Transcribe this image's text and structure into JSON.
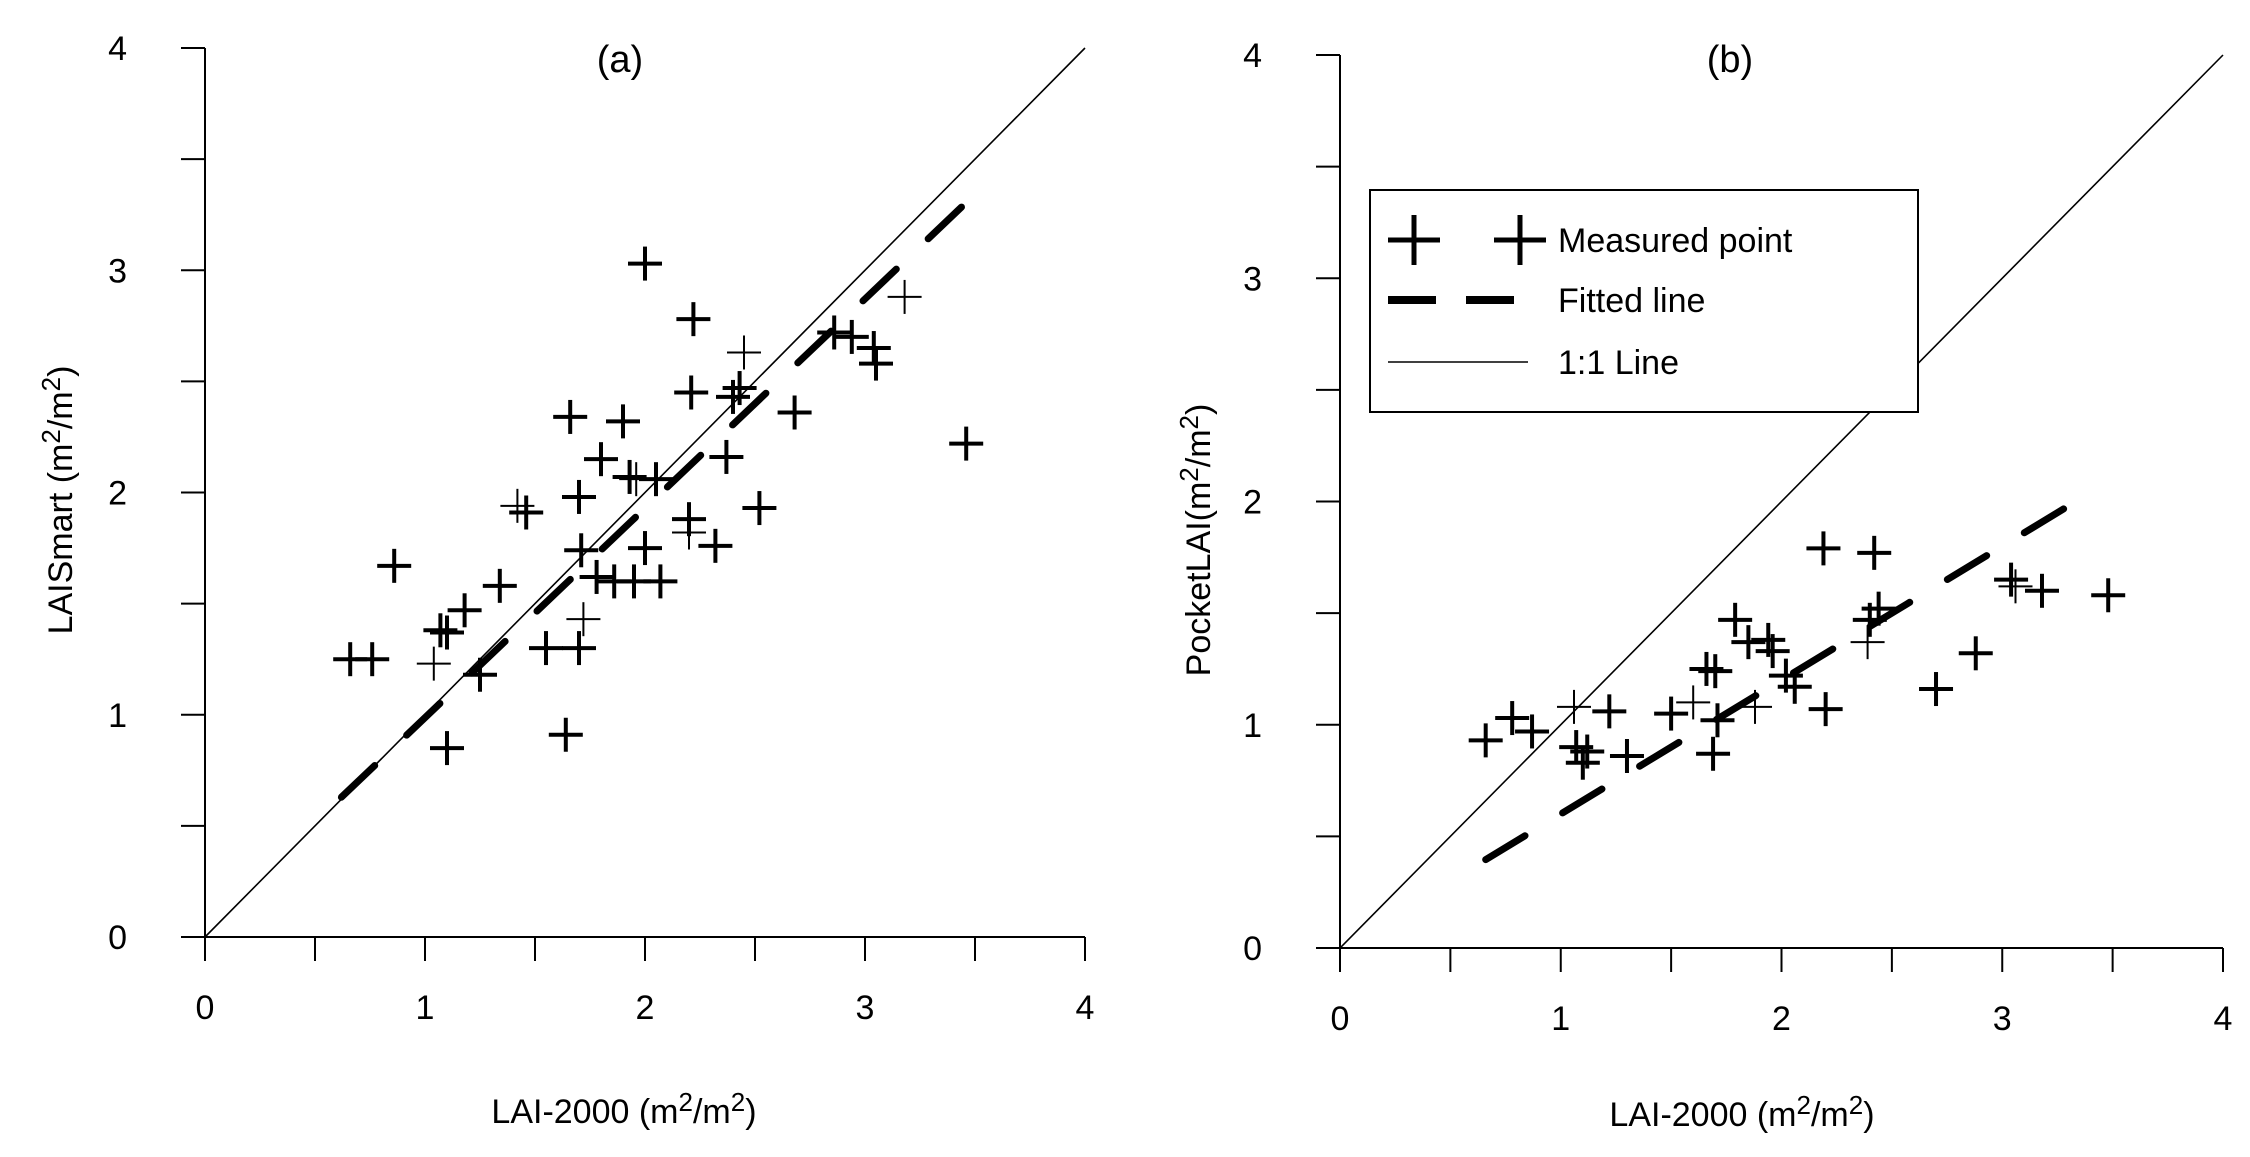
{
  "chart_data": [
    {
      "type": "scatter",
      "title": "(a)",
      "xlabel": "LAI-2000 (m",
      "xlabel_sup": "2",
      "xlabel_mid": "/m",
      "xlabel_sup2": "2",
      "xlabel_end": ")",
      "ylabel": "LAISmart (m",
      "ylabel_sup": "2",
      "ylabel_mid": "/m",
      "ylabel_sup2": "2",
      "ylabel_end": ")",
      "xlim": [
        0,
        4
      ],
      "ylim": [
        0,
        4
      ],
      "xticks": [
        0,
        1,
        2,
        3,
        4
      ],
      "yticks": [
        0,
        1,
        2,
        3,
        4
      ],
      "minor_ticks": [
        0.5,
        1.5,
        2.5,
        3.5
      ],
      "one_to_one": [
        [
          0,
          0
        ],
        [
          4,
          4
        ]
      ],
      "fitted_line": {
        "x0": 0.62,
        "x1": 3.46,
        "slope": 0.942,
        "intercept": 0.045
      },
      "series": [
        {
          "name": "Measured point",
          "points": [
            [
              0.66,
              1.25
            ],
            [
              0.76,
              1.25
            ],
            [
              0.86,
              1.67
            ],
            [
              1.04,
              1.23
            ],
            [
              1.07,
              1.38
            ],
            [
              1.1,
              1.37
            ],
            [
              1.1,
              0.85
            ],
            [
              1.18,
              1.47
            ],
            [
              1.25,
              1.18
            ],
            [
              1.34,
              1.58
            ],
            [
              1.42,
              1.94
            ],
            [
              1.46,
              1.91
            ],
            [
              1.55,
              1.3
            ],
            [
              1.64,
              0.91
            ],
            [
              1.66,
              2.34
            ],
            [
              1.7,
              1.98
            ],
            [
              1.71,
              1.74
            ],
            [
              1.72,
              1.43
            ],
            [
              1.7,
              1.3
            ],
            [
              1.78,
              1.62
            ],
            [
              1.8,
              2.15
            ],
            [
              1.86,
              1.6
            ],
            [
              1.9,
              2.32
            ],
            [
              1.93,
              2.07
            ],
            [
              1.96,
              2.06
            ],
            [
              1.95,
              1.6
            ],
            [
              2.0,
              1.75
            ],
            [
              2.0,
              3.03
            ],
            [
              2.05,
              2.06
            ],
            [
              2.07,
              1.6
            ],
            [
              2.2,
              1.88
            ],
            [
              2.2,
              1.82
            ],
            [
              2.21,
              2.45
            ],
            [
              2.22,
              2.78
            ],
            [
              2.32,
              1.76
            ],
            [
              2.37,
              2.16
            ],
            [
              2.4,
              2.43
            ],
            [
              2.43,
              2.47
            ],
            [
              2.45,
              2.63
            ],
            [
              2.52,
              1.93
            ],
            [
              2.68,
              2.36
            ],
            [
              2.86,
              2.72
            ],
            [
              2.94,
              2.7
            ],
            [
              3.04,
              2.65
            ],
            [
              3.05,
              2.58
            ],
            [
              3.18,
              2.88
            ],
            [
              3.46,
              2.22
            ]
          ]
        }
      ]
    },
    {
      "type": "scatter",
      "title": "(b)",
      "xlabel": "LAI-2000 (m",
      "xlabel_sup": "2",
      "xlabel_mid": "/m",
      "xlabel_sup2": "2",
      "xlabel_end": ")",
      "ylabel": "PocketLAI(m",
      "ylabel_sup": "2",
      "ylabel_mid": "/m",
      "ylabel_sup2": "2",
      "ylabel_end": ")",
      "xlim": [
        0,
        4
      ],
      "ylim": [
        0,
        4
      ],
      "xticks": [
        0,
        1,
        2,
        3,
        4
      ],
      "yticks": [
        0,
        1,
        2,
        3,
        4
      ],
      "minor_ticks": [
        0.5,
        1.5,
        2.5,
        3.5
      ],
      "one_to_one": [
        [
          0,
          0
        ],
        [
          4,
          4
        ]
      ],
      "fitted_line": {
        "x0": 0.66,
        "x1": 3.36,
        "slope": 0.6,
        "intercept": 0.0
      },
      "series": [
        {
          "name": "Measured point",
          "points": [
            [
              0.66,
              0.93
            ],
            [
              0.78,
              1.03
            ],
            [
              0.87,
              0.97
            ],
            [
              1.06,
              1.08
            ],
            [
              1.07,
              0.9
            ],
            [
              1.1,
              0.83
            ],
            [
              1.12,
              0.88
            ],
            [
              1.22,
              1.06
            ],
            [
              1.3,
              0.86
            ],
            [
              1.5,
              1.05
            ],
            [
              1.6,
              1.1
            ],
            [
              1.66,
              1.25
            ],
            [
              1.69,
              0.87
            ],
            [
              1.7,
              1.24
            ],
            [
              1.71,
              1.02
            ],
            [
              1.79,
              1.47
            ],
            [
              1.85,
              1.37
            ],
            [
              1.88,
              1.08
            ],
            [
              1.94,
              1.38
            ],
            [
              1.96,
              1.33
            ],
            [
              2.02,
              1.22
            ],
            [
              2.06,
              1.17
            ],
            [
              2.19,
              1.79
            ],
            [
              2.2,
              1.07
            ],
            [
              2.39,
              1.37
            ],
            [
              2.4,
              1.47
            ],
            [
              2.42,
              1.77
            ],
            [
              2.44,
              1.52
            ],
            [
              2.7,
              1.16
            ],
            [
              2.88,
              1.32
            ],
            [
              3.04,
              1.65
            ],
            [
              3.06,
              1.62
            ],
            [
              3.18,
              1.6
            ],
            [
              3.48,
              1.58
            ]
          ]
        }
      ],
      "legend": {
        "items": [
          {
            "label": "Measured point",
            "kind": "marker"
          },
          {
            "label": "Fitted line",
            "kind": "dash"
          },
          {
            "label": "1:1 Line",
            "kind": "line"
          }
        ]
      }
    }
  ]
}
